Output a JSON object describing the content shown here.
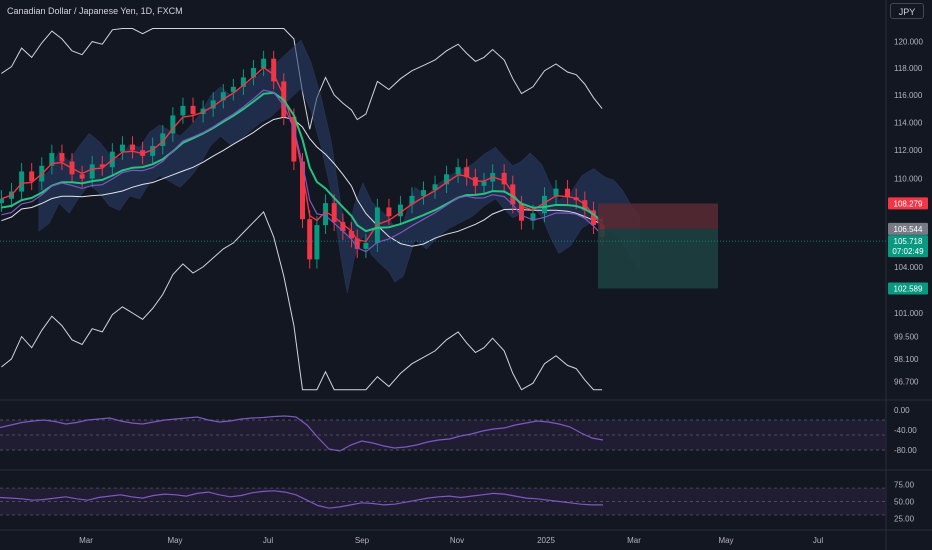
{
  "header": {
    "title": "Canadian Dollar / Japanese Yen, 1D, FXCM",
    "currency_button": "JPY"
  },
  "colors": {
    "background": "#131722",
    "grid": "#1e222d",
    "axis_text": "#b2b5be",
    "candle_up": "#089981",
    "candle_down": "#f23645",
    "ema_fast": "#f23645",
    "ema_slow": "#26c281",
    "kijun": "#7e57c2",
    "cloud": "#2a3f6b",
    "envelope": "#d1d4dc",
    "rsi": "#7e57c2",
    "rsi_band": "#2a2140",
    "loss_zone": "#5b2a33",
    "profit_zone": "#1d3f3f"
  },
  "chart_data": [
    {
      "type": "candlestick",
      "title": "Canadian Dollar / Japanese Yen, 1D, FXCM",
      "x_labels": [
        "Mar",
        "May",
        "Jul",
        "Sep",
        "Nov",
        "2025",
        "Mar",
        "May",
        "Jul"
      ],
      "y_ticks": [
        "120.000",
        "118.000",
        "116.000",
        "114.000",
        "112.000",
        "110.000",
        "104.000",
        "101.000",
        "99.500",
        "98.100",
        "96.700"
      ],
      "y_scale": "log",
      "ylim": [
        96.0,
        121.5
      ],
      "series_close": [
        [
          1,
          108.6
        ],
        [
          8,
          109.1
        ],
        [
          15,
          110.5
        ],
        [
          22,
          109.8
        ],
        [
          29,
          110.9
        ],
        [
          36,
          111.8
        ],
        [
          43,
          111.2
        ],
        [
          50,
          110.3
        ],
        [
          57,
          110.0
        ],
        [
          64,
          111.0
        ],
        [
          71,
          110.8
        ],
        [
          78,
          111.9
        ],
        [
          85,
          112.4
        ],
        [
          92,
          112.0
        ],
        [
          99,
          111.6
        ],
        [
          106,
          112.3
        ],
        [
          113,
          113.2
        ],
        [
          120,
          114.5
        ],
        [
          127,
          115.2
        ],
        [
          134,
          114.6
        ],
        [
          141,
          115.0
        ],
        [
          148,
          115.6
        ],
        [
          155,
          116.2
        ],
        [
          162,
          116.6
        ],
        [
          169,
          117.3
        ],
        [
          176,
          118.0
        ],
        [
          183,
          118.7
        ],
        [
          190,
          117.0
        ],
        [
          197,
          114.4
        ],
        [
          204,
          111.2
        ],
        [
          210,
          107.2
        ],
        [
          215,
          104.5
        ],
        [
          220,
          106.8
        ],
        [
          226,
          108.3
        ],
        [
          232,
          107.0
        ],
        [
          238,
          106.4
        ],
        [
          244,
          105.9
        ],
        [
          248,
          105.2
        ],
        [
          254,
          105.6
        ],
        [
          262,
          108.0
        ],
        [
          270,
          107.4
        ],
        [
          278,
          108.2
        ],
        [
          286,
          108.8
        ],
        [
          294,
          109.2
        ],
        [
          302,
          109.6
        ],
        [
          310,
          110.3
        ],
        [
          318,
          110.8
        ],
        [
          324,
          110.1
        ],
        [
          330,
          109.5
        ],
        [
          336,
          109.8
        ],
        [
          342,
          110.4
        ],
        [
          350,
          109.6
        ],
        [
          356,
          108.2
        ],
        [
          362,
          107.1
        ],
        [
          370,
          107.6
        ],
        [
          378,
          108.8
        ],
        [
          386,
          109.3
        ],
        [
          394,
          108.7
        ],
        [
          400,
          108.5
        ],
        [
          406,
          107.8
        ],
        [
          412,
          106.8
        ],
        [
          418,
          106.0
        ]
      ],
      "indicators": [
        "EMA fast",
        "EMA slow",
        "Kijun",
        "Ichimoku cloud",
        "Envelope bands",
        "Moving average"
      ],
      "position": {
        "type": "short",
        "entry": "106.544",
        "stop": "108.279",
        "target": "102.589"
      },
      "labels": [
        {
          "text": "108.279",
          "value": 108.279,
          "color": "#f23645"
        },
        {
          "text": "106.544",
          "value": 106.544,
          "color": "#787b86"
        },
        {
          "text": "105.718",
          "text2": "07:02:49",
          "value": 105.718,
          "color": "#089981"
        },
        {
          "text": "102.589",
          "value": 102.589,
          "color": "#089981"
        }
      ]
    },
    {
      "type": "line",
      "y_ticks": [
        "0.00",
        "-40.00",
        "-80.00"
      ],
      "ylim": [
        -100,
        0
      ],
      "levels": [
        -20,
        -50,
        -80
      ],
      "values": [
        -35,
        -30,
        -25,
        -22,
        -20,
        -23,
        -28,
        -25,
        -20,
        -18,
        -16,
        -22,
        -26,
        -28,
        -24,
        -20,
        -18,
        -16,
        -14,
        -20,
        -24,
        -22,
        -18,
        -16,
        -15,
        -13,
        -12,
        -14,
        -30,
        -55,
        -78,
        -82,
        -70,
        -62,
        -66,
        -72,
        -76,
        -74,
        -70,
        -64,
        -60,
        -58,
        -52,
        -48,
        -42,
        -38,
        -36,
        -30,
        -26,
        -22,
        -24,
        -28,
        -34,
        -46,
        -56,
        -60
      ]
    },
    {
      "type": "line",
      "y_ticks": [
        "75.00",
        "50.00",
        "25.00"
      ],
      "ylim": [
        15,
        85
      ],
      "levels": [
        70,
        50,
        30
      ],
      "values": [
        56,
        55,
        54,
        52,
        53,
        55,
        57,
        54,
        52,
        56,
        58,
        60,
        57,
        55,
        59,
        61,
        60,
        58,
        62,
        64,
        60,
        57,
        59,
        63,
        65,
        66,
        64,
        60,
        52,
        44,
        40,
        42,
        45,
        48,
        47,
        45,
        46,
        49,
        52,
        55,
        57,
        58,
        56,
        58,
        60,
        62,
        61,
        58,
        55,
        54,
        52,
        50,
        48,
        46,
        45,
        45
      ]
    }
  ]
}
